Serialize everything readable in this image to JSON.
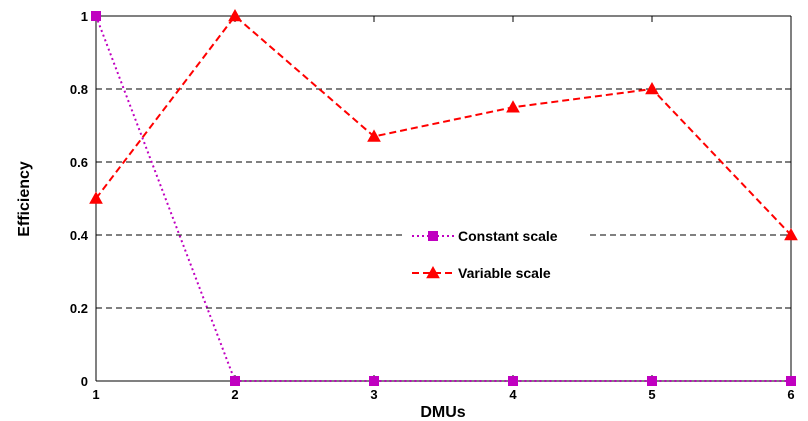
{
  "chart_data": {
    "type": "line",
    "title": "",
    "xlabel": "DMUs",
    "ylabel": "Efficiency",
    "x": [
      1,
      2,
      3,
      4,
      5,
      6
    ],
    "xlim": [
      1,
      6
    ],
    "ylim": [
      0,
      1
    ],
    "xticks": [
      "1",
      "2",
      "3",
      "4",
      "5",
      "6"
    ],
    "yticks": [
      "0",
      "0.2",
      "0.4",
      "0.6",
      "0.8",
      "1"
    ],
    "grid": "horizontal dashed",
    "legend_position": "center",
    "series": [
      {
        "name": "Constant scale",
        "values": [
          1,
          0,
          0,
          0,
          0,
          0
        ],
        "color": "#c000c0",
        "line_style": "dotted",
        "marker": "square"
      },
      {
        "name": "Variable scale",
        "values": [
          0.5,
          1,
          0.67,
          0.75,
          0.8,
          0.4
        ],
        "color": "#ff0000",
        "line_style": "dashed",
        "marker": "triangle"
      }
    ]
  }
}
